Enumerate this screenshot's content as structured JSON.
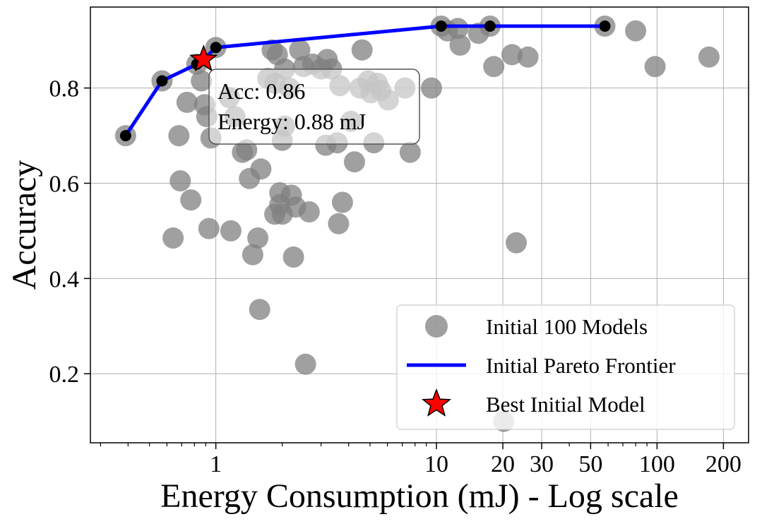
{
  "chart_data": {
    "type": "scatter",
    "xlabel": "Energy Consumption (mJ) - Log scale",
    "ylabel": "Accuracy",
    "xscale": "log",
    "xlim": [
      0.27,
      260
    ],
    "ylim": [
      0.055,
      0.97
    ],
    "grid": true,
    "x_ticks": [
      {
        "value": 1,
        "label": "1"
      },
      {
        "value": 10,
        "label": "10"
      },
      {
        "value": 20,
        "label": "20"
      },
      {
        "value": 30,
        "label": "30"
      },
      {
        "value": 50,
        "label": "50"
      },
      {
        "value": 100,
        "label": "100"
      },
      {
        "value": 200,
        "label": "200"
      }
    ],
    "y_ticks": [
      {
        "value": 0.2,
        "label": "0.2"
      },
      {
        "value": 0.4,
        "label": "0.4"
      },
      {
        "value": 0.6,
        "label": "0.6"
      },
      {
        "value": 0.8,
        "label": "0.8"
      }
    ],
    "legend": {
      "placement": "lower-right",
      "entries": [
        {
          "label": "Initial 100 Models",
          "marker": "circle",
          "color": "#808080"
        },
        {
          "label": "Initial Pareto Frontier",
          "marker": "line",
          "color": "#0000ff"
        },
        {
          "label": "Best Initial Model",
          "marker": "star",
          "color": "#ff0000"
        }
      ]
    },
    "annotation": {
      "line1": "Acc: 0.86",
      "line2": "Energy: 0.88 mJ",
      "x": 0.88,
      "y": 0.86
    },
    "series": [
      {
        "name": "Initial 100 Models",
        "color": "#808080",
        "points": [
          [
            0.39,
            0.7
          ],
          [
            0.57,
            0.815
          ],
          [
            0.68,
            0.7
          ],
          [
            0.74,
            0.77
          ],
          [
            0.64,
            0.485
          ],
          [
            0.69,
            0.605
          ],
          [
            0.77,
            0.565
          ],
          [
            0.82,
            0.85
          ],
          [
            0.86,
            0.815
          ],
          [
            0.89,
            0.765
          ],
          [
            0.91,
            0.74
          ],
          [
            0.95,
            0.695
          ],
          [
            0.93,
            0.505
          ],
          [
            1.0,
            0.885
          ],
          [
            1.15,
            0.78
          ],
          [
            1.22,
            0.74
          ],
          [
            1.17,
            0.5
          ],
          [
            1.32,
            0.665
          ],
          [
            1.38,
            0.67
          ],
          [
            1.42,
            0.61
          ],
          [
            1.47,
            0.45
          ],
          [
            1.55,
            0.485
          ],
          [
            1.6,
            0.63
          ],
          [
            1.58,
            0.335
          ],
          [
            1.72,
            0.82
          ],
          [
            1.8,
            0.88
          ],
          [
            1.85,
            0.81
          ],
          [
            1.9,
            0.87
          ],
          [
            1.85,
            0.535
          ],
          [
            1.95,
            0.58
          ],
          [
            1.95,
            0.555
          ],
          [
            2.0,
            0.535
          ],
          [
            2.0,
            0.69
          ],
          [
            2.05,
            0.72
          ],
          [
            2.05,
            0.84
          ],
          [
            2.15,
            0.8
          ],
          [
            2.2,
            0.575
          ],
          [
            2.25,
            0.445
          ],
          [
            2.3,
            0.55
          ],
          [
            2.4,
            0.88
          ],
          [
            2.5,
            0.845
          ],
          [
            2.55,
            0.22
          ],
          [
            2.65,
            0.54
          ],
          [
            2.75,
            0.85
          ],
          [
            3.0,
            0.84
          ],
          [
            3.15,
            0.68
          ],
          [
            3.2,
            0.86
          ],
          [
            3.35,
            0.84
          ],
          [
            3.55,
            0.685
          ],
          [
            3.6,
            0.515
          ],
          [
            3.75,
            0.56
          ],
          [
            3.65,
            0.805
          ],
          [
            4.1,
            0.73
          ],
          [
            4.25,
            0.645
          ],
          [
            4.5,
            0.8
          ],
          [
            4.6,
            0.88
          ],
          [
            4.9,
            0.815
          ],
          [
            5.05,
            0.79
          ],
          [
            5.2,
            0.685
          ],
          [
            5.4,
            0.81
          ],
          [
            5.6,
            0.795
          ],
          [
            6.05,
            0.775
          ],
          [
            7.2,
            0.8
          ],
          [
            7.6,
            0.665
          ],
          [
            9.5,
            0.8
          ],
          [
            10.5,
            0.93
          ],
          [
            11.2,
            0.92
          ],
          [
            12.5,
            0.925
          ],
          [
            12.8,
            0.89
          ],
          [
            15.5,
            0.915
          ],
          [
            17.5,
            0.93
          ],
          [
            18.2,
            0.845
          ],
          [
            20.2,
            0.1
          ],
          [
            22.0,
            0.87
          ],
          [
            23.0,
            0.475
          ],
          [
            26.0,
            0.865
          ],
          [
            58.0,
            0.93
          ],
          [
            80.0,
            0.92
          ],
          [
            98.0,
            0.845
          ],
          [
            172.0,
            0.865
          ]
        ]
      },
      {
        "name": "Initial Pareto Frontier",
        "color": "#0000ff",
        "points": [
          [
            0.39,
            0.7
          ],
          [
            0.57,
            0.815
          ],
          [
            0.82,
            0.85
          ],
          [
            0.88,
            0.86
          ],
          [
            1.0,
            0.885
          ],
          [
            10.5,
            0.93
          ],
          [
            17.5,
            0.93
          ],
          [
            58.0,
            0.93
          ]
        ]
      },
      {
        "name": "Best Initial Model",
        "color": "#ff0000",
        "points": [
          [
            0.88,
            0.86
          ]
        ]
      }
    ]
  }
}
